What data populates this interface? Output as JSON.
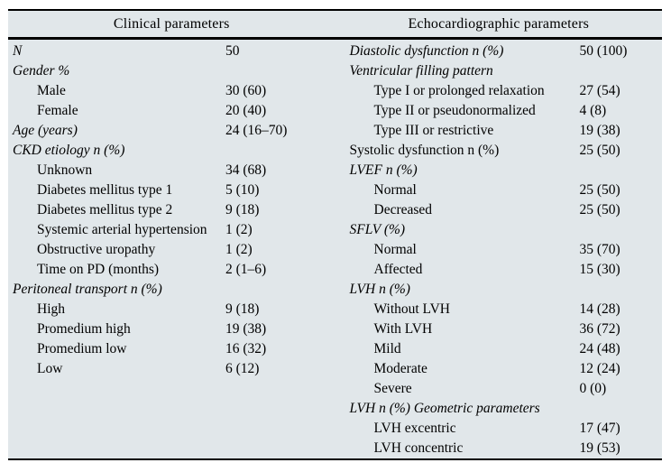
{
  "table": {
    "left": {
      "header": "Clinical parameters",
      "rows": [
        {
          "label": "N",
          "value": "50",
          "style": "category"
        },
        {
          "label": "Gender %",
          "value": "",
          "style": "category"
        },
        {
          "label": "Male",
          "value": "30 (60)",
          "style": "sub"
        },
        {
          "label": "Female",
          "value": "20 (40)",
          "style": "sub"
        },
        {
          "label": "Age (years)",
          "value": "24 (16–70)",
          "style": "category"
        },
        {
          "label": "CKD etiology n (%)",
          "value": "",
          "style": "category"
        },
        {
          "label": "Unknown",
          "value": "34 (68)",
          "style": "sub"
        },
        {
          "label": "Diabetes mellitus type 1",
          "value": "5 (10)",
          "style": "sub"
        },
        {
          "label": "Diabetes mellitus type 2",
          "value": "9 (18)",
          "style": "sub"
        },
        {
          "label": "Systemic arterial hypertension",
          "value": "1 (2)",
          "style": "sub"
        },
        {
          "label": "Obstructive uropathy",
          "value": "1 (2)",
          "style": "sub"
        },
        {
          "label": "Time on PD (months)",
          "value": "2 (1–6)",
          "style": "sub"
        },
        {
          "label": "Peritoneal transport n (%)",
          "value": "",
          "style": "category"
        },
        {
          "label": "High",
          "value": "9 (18)",
          "style": "sub"
        },
        {
          "label": "Promedium high",
          "value": "19 (38)",
          "style": "sub"
        },
        {
          "label": "Promedium low",
          "value": "16 (32)",
          "style": "sub"
        },
        {
          "label": "Low",
          "value": "6 (12)",
          "style": "sub"
        }
      ]
    },
    "right": {
      "header": "Echocardiographic parameters",
      "rows": [
        {
          "label": "Diastolic dysfunction n (%)",
          "value": "50 (100)",
          "style": "category"
        },
        {
          "label": "Ventricular filling pattern",
          "value": "",
          "style": "category"
        },
        {
          "label": "Type I or prolonged relaxation",
          "value": "27 (54)",
          "style": "sub"
        },
        {
          "label": "Type II or pseudonormalized",
          "value": "4 (8)",
          "style": "sub"
        },
        {
          "label": "Type III or restrictive",
          "value": "19 (38)",
          "style": "sub"
        },
        {
          "label": "Systolic dysfunction n (%)",
          "value": "25 (50)",
          "style": "plain"
        },
        {
          "label": "LVEF n (%)",
          "value": "",
          "style": "category"
        },
        {
          "label": "Normal",
          "value": "25 (50)",
          "style": "sub"
        },
        {
          "label": "Decreased",
          "value": "25 (50)",
          "style": "sub"
        },
        {
          "label": "SFLV (%)",
          "value": "",
          "style": "category"
        },
        {
          "label": "Normal",
          "value": "35 (70)",
          "style": "sub"
        },
        {
          "label": "Affected",
          "value": "15 (30)",
          "style": "sub"
        },
        {
          "label": "LVH n (%)",
          "value": "",
          "style": "category"
        },
        {
          "label": "Without LVH",
          "value": "14 (28)",
          "style": "sub"
        },
        {
          "label": "With LVH",
          "value": "36 (72)",
          "style": "sub"
        },
        {
          "label": "Mild",
          "value": "24 (48)",
          "style": "sub"
        },
        {
          "label": "Moderate",
          "value": "12 (24)",
          "style": "sub"
        },
        {
          "label": "Severe",
          "value": "0 (0)",
          "style": "sub"
        },
        {
          "label": "LVH n (%) Geometric parameters",
          "value": "",
          "style": "category"
        },
        {
          "label": "LVH excentric",
          "value": "17 (47)",
          "style": "sub"
        },
        {
          "label": "LVH concentric",
          "value": "19 (53)",
          "style": "sub"
        }
      ]
    }
  },
  "colors": {
    "table_background": "#e1e7ea",
    "rule": "#000000",
    "page_background": "#ffffff",
    "text": "#000000"
  }
}
